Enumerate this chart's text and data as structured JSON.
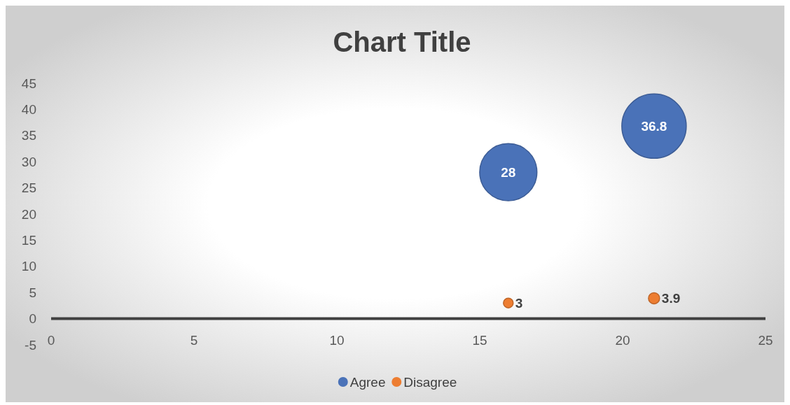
{
  "chart_data": {
    "type": "bubble",
    "title": "Chart Title",
    "x": [
      16,
      21.1
    ],
    "series": [
      {
        "name": "Agree",
        "color": "#4a72b8",
        "values": [
          28,
          36.8
        ],
        "sizes": [
          0.79,
          1
        ]
      },
      {
        "name": "Disagree",
        "color": "#ed7d31",
        "values": [
          3,
          3.9
        ],
        "sizes": [
          0.023,
          0.03
        ]
      }
    ],
    "xlim": [
      0,
      25
    ],
    "xticks": [
      0,
      5,
      10,
      15,
      20,
      25
    ],
    "ylim": [
      -5,
      45
    ],
    "yticks": [
      -5,
      0,
      5,
      10,
      15,
      20,
      25,
      30,
      35,
      40,
      45
    ],
    "data_labels": true,
    "legend": "bottom",
    "grid": false
  }
}
